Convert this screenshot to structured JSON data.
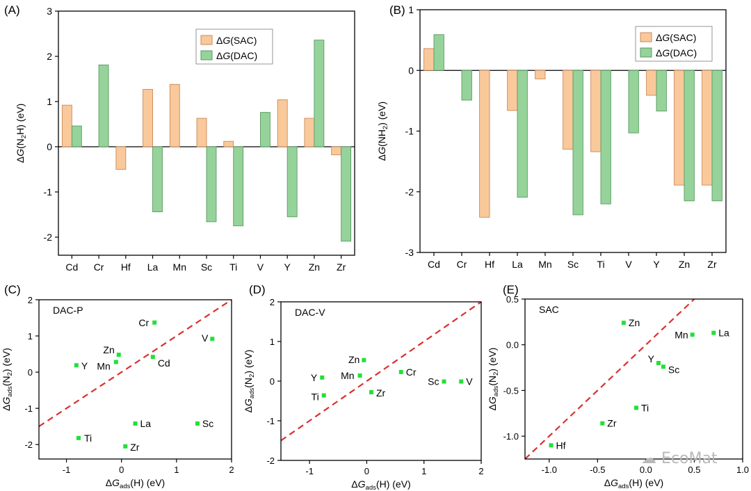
{
  "watermark": "EcoMat",
  "colors": {
    "sac_fill": "#f9c99b",
    "sac_stroke": "#c9895a",
    "dac_fill": "#95d39a",
    "dac_stroke": "#5b9a63",
    "point": "#22e03a",
    "diag": "#d9302f"
  },
  "chart_data": [
    {
      "id": "A",
      "type": "bar",
      "panel_label": "(A)",
      "categories": [
        "Cd",
        "Cr",
        "Hf",
        "La",
        "Mn",
        "Sc",
        "Ti",
        "V",
        "Y",
        "Zn",
        "Zr"
      ],
      "series": [
        {
          "name": "SAC",
          "values": [
            0.92,
            null,
            -0.5,
            1.27,
            1.38,
            0.63,
            0.12,
            null,
            1.04,
            0.63,
            -0.18
          ]
        },
        {
          "name": "DAC",
          "values": [
            0.46,
            1.81,
            null,
            -1.44,
            null,
            -1.66,
            -1.75,
            0.76,
            -1.55,
            2.36,
            -2.09
          ]
        }
      ],
      "legend": [
        "ΔG(SAC)",
        "ΔG(DAC)"
      ],
      "ylim": [
        -2.4,
        3
      ],
      "yticks": [
        "-2",
        "-1",
        "0",
        "1",
        "2",
        "3"
      ],
      "ylabel": "ΔG(N2H) (eV)"
    },
    {
      "id": "B",
      "type": "bar",
      "panel_label": "(B)",
      "categories": [
        "Cd",
        "Cr",
        "Hf",
        "La",
        "Mn",
        "Sc",
        "Ti",
        "V",
        "Y",
        "Zn",
        "Zr"
      ],
      "series": [
        {
          "name": "SAC",
          "values": [
            0.36,
            null,
            -2.42,
            -0.66,
            -0.14,
            -1.3,
            -1.34,
            null,
            -0.41,
            -1.89,
            -1.89
          ]
        },
        {
          "name": "DAC",
          "values": [
            0.59,
            -0.49,
            null,
            -2.09,
            null,
            -2.38,
            -2.2,
            -1.03,
            -0.67,
            -2.15,
            -2.15
          ]
        }
      ],
      "legend": [
        "ΔG(SAC)",
        "ΔG(DAC)"
      ],
      "ylim": [
        -3,
        1
      ],
      "yticks": [
        "-3",
        "-2",
        "-1",
        "0",
        "1"
      ],
      "ylabel": "ΔG(NH2) (eV)"
    },
    {
      "id": "C",
      "type": "scatter",
      "panel_label": "(C)",
      "annotation": "DAC-P",
      "points": [
        {
          "label": "Cr",
          "x": 0.6,
          "y": 1.37
        },
        {
          "label": "V",
          "x": 1.65,
          "y": 0.92
        },
        {
          "label": "Zn",
          "x": -0.05,
          "y": 0.48
        },
        {
          "label": "Cd",
          "x": 0.57,
          "y": 0.42
        },
        {
          "label": "Mn",
          "x": -0.1,
          "y": 0.28
        },
        {
          "label": "Y",
          "x": -0.82,
          "y": 0.19
        },
        {
          "label": "La",
          "x": 0.25,
          "y": -1.42
        },
        {
          "label": "Sc",
          "x": 1.38,
          "y": -1.42
        },
        {
          "label": "Ti",
          "x": -0.78,
          "y": -1.82
        },
        {
          "label": "Zr",
          "x": 0.07,
          "y": -2.05
        }
      ],
      "xlim": [
        -1.5,
        2
      ],
      "ylim": [
        -2.4,
        2
      ],
      "xticks": [
        "-1",
        "0",
        "1",
        "2"
      ],
      "yticks": [
        "-2",
        "-1",
        "0",
        "1",
        "2"
      ],
      "xlabel": "ΔGads(H) (eV)",
      "ylabel": "ΔGads(N2) (eV)"
    },
    {
      "id": "D",
      "type": "scatter",
      "panel_label": "(D)",
      "annotation": "DAC-V",
      "points": [
        {
          "label": "Zn",
          "x": -0.05,
          "y": 0.53
        },
        {
          "label": "Cr",
          "x": 0.6,
          "y": 0.23
        },
        {
          "label": "Mn",
          "x": -0.12,
          "y": 0.14
        },
        {
          "label": "Y",
          "x": -0.78,
          "y": 0.09
        },
        {
          "label": "Sc",
          "x": 1.35,
          "y": -0.01
        },
        {
          "label": "V",
          "x": 1.65,
          "y": -0.01
        },
        {
          "label": "Zr",
          "x": 0.08,
          "y": -0.28
        },
        {
          "label": "Ti",
          "x": -0.75,
          "y": -0.36
        }
      ],
      "xlim": [
        -1.5,
        2
      ],
      "ylim": [
        -2,
        2
      ],
      "xticks": [
        "-1",
        "0",
        "1",
        "2"
      ],
      "yticks": [
        "-2",
        "-1",
        "0",
        "1",
        "2"
      ],
      "xlabel": "ΔGads(H) (eV)",
      "ylabel": "ΔGads(N2) (eV)"
    },
    {
      "id": "E",
      "type": "scatter",
      "panel_label": "(E)",
      "annotation": "SAC",
      "points": [
        {
          "label": "Zn",
          "x": -0.23,
          "y": 0.24
        },
        {
          "label": "La",
          "x": 0.7,
          "y": 0.13
        },
        {
          "label": "Mn",
          "x": 0.48,
          "y": 0.11
        },
        {
          "label": "Y",
          "x": 0.13,
          "y": -0.2
        },
        {
          "label": "Sc",
          "x": 0.18,
          "y": -0.24
        },
        {
          "label": "Ti",
          "x": -0.1,
          "y": -0.69
        },
        {
          "label": "Zr",
          "x": -0.45,
          "y": -0.86
        },
        {
          "label": "Hf",
          "x": -0.98,
          "y": -1.1
        }
      ],
      "xlim": [
        -1.25,
        1
      ],
      "ylim": [
        -1.25,
        0.5
      ],
      "xticks": [
        "-1.0",
        "-0.5",
        "0.0",
        "0.5",
        "1.0"
      ],
      "yticks": [
        "-1.0",
        "-0.5",
        "0.0",
        "0.5"
      ],
      "xlabel": "ΔGads(H) (eV)",
      "ylabel": "ΔGads(N2) (eV)"
    }
  ]
}
